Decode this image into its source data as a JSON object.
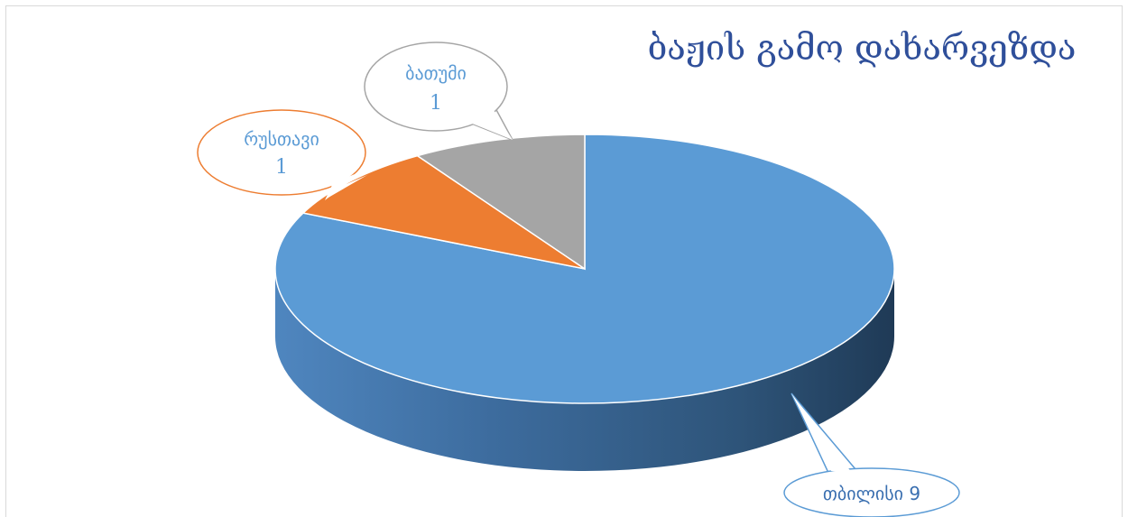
{
  "chart_data": {
    "type": "pie",
    "title": "ბაჟის გამო დახარვეზდა",
    "slices": [
      {
        "label": "თბილისი",
        "value": 9,
        "color": "#5b9bd5",
        "label_text": "თბილისი 9"
      },
      {
        "label": "რუსთავი",
        "value": 1,
        "color": "#ed7d31",
        "label_text": "რუსთავი",
        "value_text": "1"
      },
      {
        "label": "ბათუმი",
        "value": 1,
        "color": "#a5a5a5",
        "label_text": "ბათუმი",
        "value_text": "1"
      }
    ],
    "legend": "none",
    "style": "3d"
  }
}
